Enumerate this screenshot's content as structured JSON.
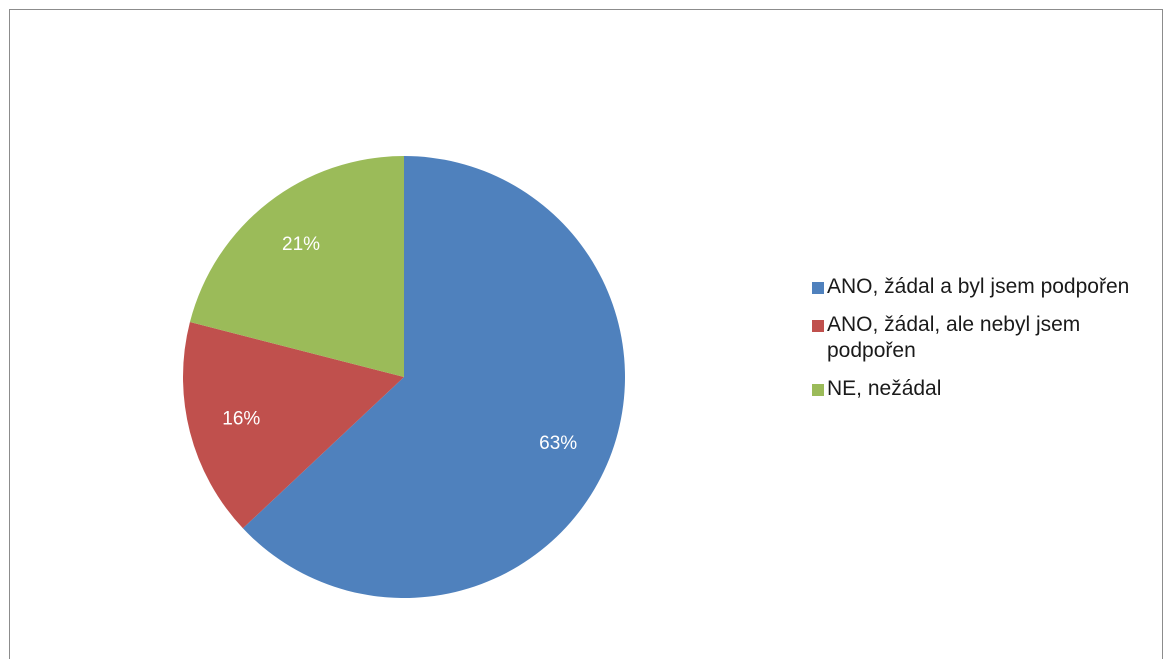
{
  "chart_data": {
    "type": "pie",
    "title": "",
    "series": [
      {
        "labels": [
          "ANO, žádal a byl jsem podpořen",
          "ANO, žádal, ale nebyl jsem podpořen",
          "NE, nežádal"
        ],
        "values": [
          63,
          16,
          21
        ],
        "data_labels": [
          "63%",
          "16%",
          "21%"
        ],
        "colors": [
          "#4f81bd",
          "#c0504d",
          "#9bbb59"
        ]
      }
    ],
    "start_angle_deg": 0,
    "direction": "clockwise",
    "legend_position": "right",
    "data_label_color": "#ffffff"
  },
  "legend": {
    "items": [
      {
        "label": "ANO, žádal a byl jsem podpořen",
        "color": "#4f81bd"
      },
      {
        "label": "ANO, žádal, ale nebyl jsem podpořen",
        "color": "#c0504d"
      },
      {
        "label": "NE, nežádal",
        "color": "#9bbb59"
      }
    ]
  }
}
